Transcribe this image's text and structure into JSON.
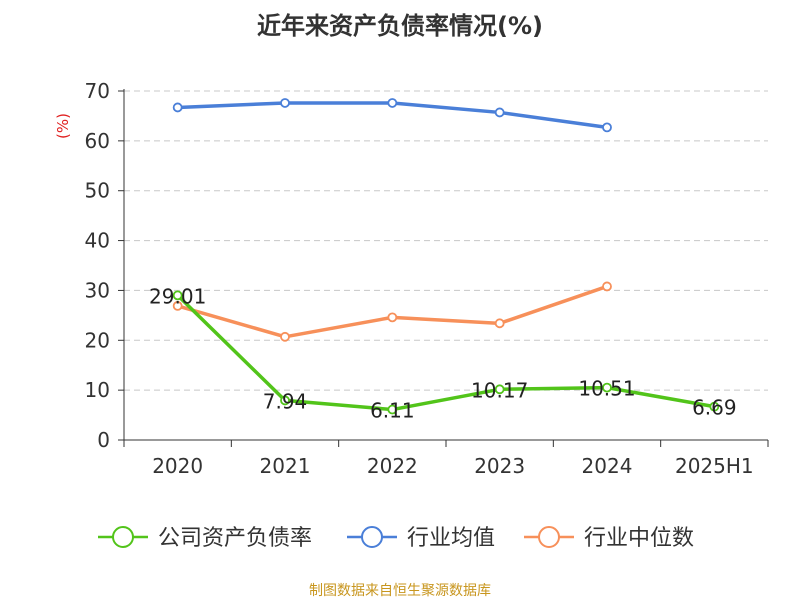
{
  "chart_data": {
    "type": "line",
    "title": "近年来资产负债率情况(%)",
    "ylabel": "(%)",
    "xlabel": "",
    "ylim": [
      0,
      70
    ],
    "yticks": [
      0,
      10,
      20,
      30,
      40,
      50,
      60,
      70
    ],
    "categories": [
      "2020",
      "2021",
      "2022",
      "2023",
      "2024",
      "2025H1"
    ],
    "grid": true,
    "legend_position": "bottom",
    "series": [
      {
        "name": "公司资产负债率",
        "color": "#52c41a",
        "values": [
          29.01,
          7.94,
          6.11,
          10.17,
          10.51,
          6.69
        ],
        "labels": [
          "29.01",
          "7.94",
          "6.11",
          "10.17",
          "10.51",
          "6.69"
        ]
      },
      {
        "name": "行业均值",
        "color": "#4a7fd8",
        "values": [
          66.7,
          67.6,
          67.6,
          65.7,
          62.7,
          null
        ]
      },
      {
        "name": "行业中位数",
        "color": "#f7905a",
        "values": [
          26.9,
          20.7,
          24.6,
          23.4,
          30.8,
          null
        ]
      }
    ]
  },
  "source_note": "制图数据来自恒生聚源数据库"
}
